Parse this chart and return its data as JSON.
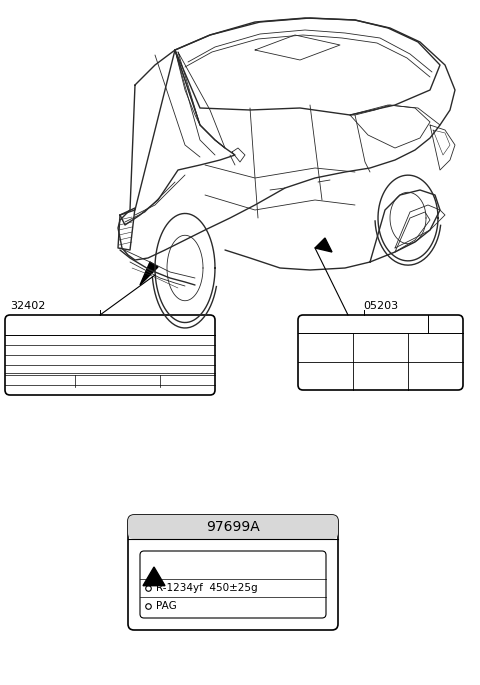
{
  "bg_color": "#ffffff",
  "line_color": "#000000",
  "car_color": "#2a2a2a",
  "label_32402": "32402",
  "label_05203": "05203",
  "label_97699A": "97699A",
  "label_r1234": "R-1234yf  450±25g",
  "label_pag": "PAG",
  "fig_w": 4.8,
  "fig_h": 6.85,
  "dpi": 100
}
